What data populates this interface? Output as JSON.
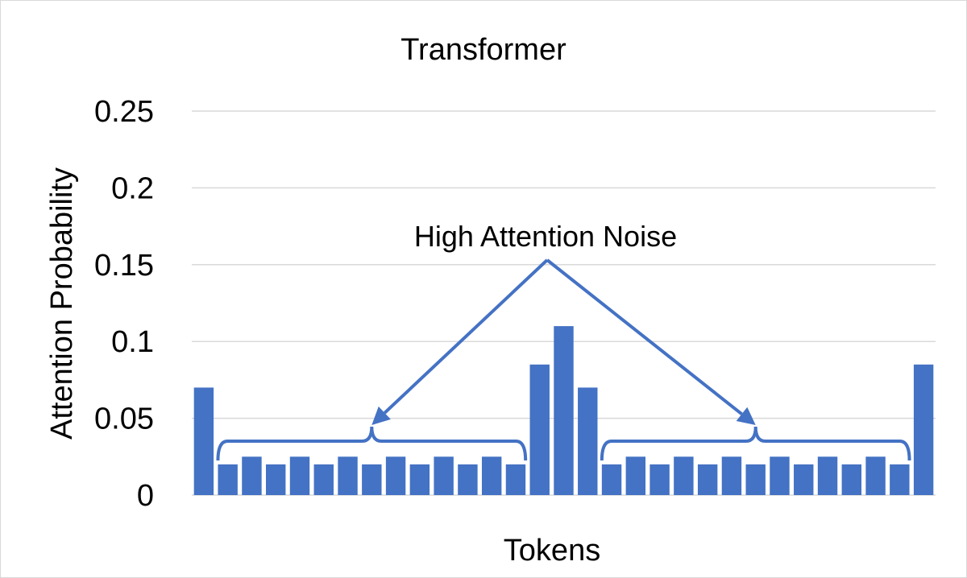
{
  "chart_data": {
    "type": "bar",
    "title": "Transformer",
    "xlabel": "Tokens",
    "ylabel": "Attention Probability",
    "ylim": [
      0,
      0.25
    ],
    "yticks": [
      "0",
      "0.05",
      "0.1",
      "0.15",
      "0.2",
      "0.25"
    ],
    "grid": true,
    "values": [
      0.07,
      0.02,
      0.025,
      0.02,
      0.025,
      0.02,
      0.025,
      0.02,
      0.025,
      0.02,
      0.025,
      0.02,
      0.025,
      0.02,
      0.085,
      0.11,
      0.07,
      0.02,
      0.025,
      0.02,
      0.025,
      0.02,
      0.025,
      0.02,
      0.025,
      0.02,
      0.025,
      0.02,
      0.025,
      0.02,
      0.085
    ],
    "bar_color": "#4472c4",
    "annotation": {
      "text": "High Attention Noise",
      "brace_groups": [
        [
          1,
          13
        ],
        [
          17,
          29
        ]
      ]
    }
  }
}
